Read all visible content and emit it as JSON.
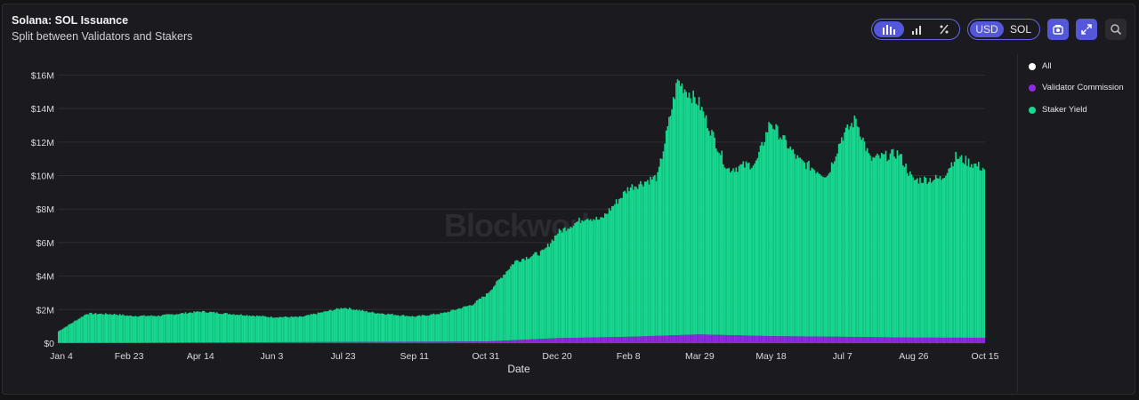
{
  "header": {
    "title": "Solana: SOL Issuance",
    "subtitle": "Split between Validators and Stakers"
  },
  "toolbar": {
    "chart_type_icons": [
      "bar-chart-icon",
      "stepped-bar-icon",
      "percent-icon"
    ],
    "currency_options": [
      "USD",
      "SOL"
    ],
    "currency_selected": "USD",
    "buttons": [
      "screenshot-icon",
      "expand-icon",
      "search-icon"
    ]
  },
  "watermark": "Blockworks",
  "colors": {
    "all": "#ffffff",
    "validator": "#8b2be2",
    "staker": "#16d98f",
    "accent": "#5457d9"
  },
  "chart_data": {
    "type": "bar",
    "stacked": true,
    "xlabel": "Date",
    "ylabel": "",
    "ylim": [
      0,
      16500000
    ],
    "y_ticks": [
      "$0",
      "$2M",
      "$4M",
      "$6M",
      "$8M",
      "$10M",
      "$12M",
      "$14M",
      "$16M"
    ],
    "y_tick_values": [
      0,
      2000000,
      4000000,
      6000000,
      8000000,
      10000000,
      12000000,
      14000000,
      16000000
    ],
    "x_ticks": [
      "Jan 4",
      "Feb 23",
      "Apr 14",
      "Jun 3",
      "Jul 23",
      "Sep 11",
      "Oct 31",
      "Dec 20",
      "Feb 8",
      "Mar 29",
      "May 18",
      "Jul 7",
      "Aug 26",
      "Oct 15"
    ],
    "grid": true,
    "legend_position": "right",
    "legend": [
      "All",
      "Validator Commission",
      "Staker Yield"
    ],
    "series_keypoints": [
      {
        "name": "Staker Yield",
        "points": [
          [
            "Jan 4",
            700000
          ],
          [
            "Jan 24",
            1750000
          ],
          [
            "Feb 13",
            1700000
          ],
          [
            "Feb 23",
            1600000
          ],
          [
            "Mar 15",
            1600000
          ],
          [
            "Apr 14",
            1850000
          ],
          [
            "May 4",
            1700000
          ],
          [
            "Jun 3",
            1500000
          ],
          [
            "Jun 23",
            1500000
          ],
          [
            "Jul 23",
            2050000
          ],
          [
            "Aug 12",
            1750000
          ],
          [
            "Sep 11",
            1500000
          ],
          [
            "Oct 1",
            1700000
          ],
          [
            "Oct 21",
            2200000
          ],
          [
            "Oct 31",
            2800000
          ],
          [
            "Nov 20",
            4700000
          ],
          [
            "Dec 10",
            5200000
          ],
          [
            "Dec 20",
            6300000
          ],
          [
            "Jan 9",
            7200000
          ],
          [
            "Jan 19",
            7000000
          ],
          [
            "Feb 8",
            8900000
          ],
          [
            "Feb 28",
            9500000
          ],
          [
            "Mar 14",
            15200000
          ],
          [
            "Mar 19",
            14700000
          ],
          [
            "Mar 29",
            13800000
          ],
          [
            "Apr 18",
            9900000
          ],
          [
            "May 8",
            10300000
          ],
          [
            "May 18",
            12800000
          ],
          [
            "Jun 7",
            10500000
          ],
          [
            "Jun 27",
            9600000
          ],
          [
            "Jul 7",
            11900000
          ],
          [
            "Jul 17",
            13000000
          ],
          [
            "Jul 27",
            10600000
          ],
          [
            "Aug 16",
            11000000
          ],
          [
            "Aug 26",
            9400000
          ],
          [
            "Sep 15",
            9500000
          ],
          [
            "Sep 25",
            10800000
          ],
          [
            "Oct 15",
            10100000
          ]
        ]
      },
      {
        "name": "Validator Commission",
        "points": [
          [
            "Jan 4",
            10000
          ],
          [
            "Oct 31",
            100000
          ],
          [
            "Dec 20",
            300000
          ],
          [
            "Feb 8",
            380000
          ],
          [
            "Mar 29",
            520000
          ],
          [
            "May 18",
            420000
          ],
          [
            "Jul 7",
            380000
          ],
          [
            "Aug 26",
            330000
          ],
          [
            "Oct 15",
            320000
          ]
        ]
      }
    ]
  }
}
